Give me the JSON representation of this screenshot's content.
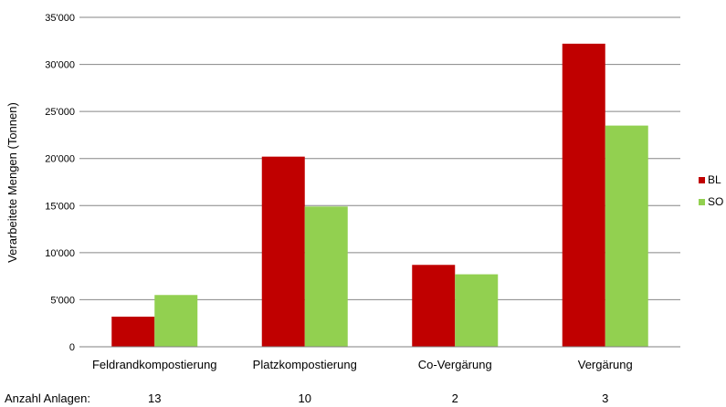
{
  "chart_data": {
    "type": "bar",
    "ylabel": "Verarbeitete Mengen (Tonnen)",
    "ylim": [
      0,
      35000
    ],
    "yticks": [
      0,
      5000,
      10000,
      15000,
      20000,
      25000,
      30000,
      35000
    ],
    "ytick_labels": [
      "0",
      "5'000",
      "10'000",
      "15'000",
      "20'000",
      "25'000",
      "30'000",
      "35'000"
    ],
    "grid": true,
    "legend_position": "right",
    "categories": [
      "Feldrandkompostierung",
      "Platzkompostierung",
      "Co-Vergärung",
      "Vergärung"
    ],
    "series": [
      {
        "name": "BL",
        "color": "#c00000",
        "values": [
          3200,
          20200,
          8700,
          32200
        ]
      },
      {
        "name": "SO",
        "color": "#92d050",
        "values": [
          5500,
          14900,
          7700,
          23500
        ]
      }
    ],
    "footer": {
      "label": "Anzahl Anlagen:",
      "values": [
        "13",
        "10",
        "2",
        "3"
      ]
    }
  }
}
